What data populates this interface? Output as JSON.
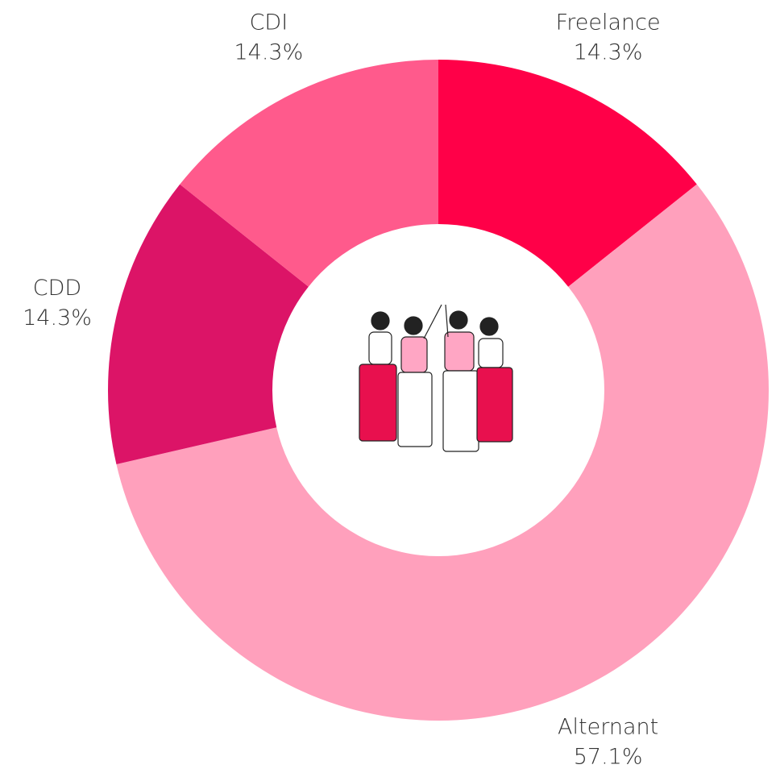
{
  "chart_data": {
    "type": "donut",
    "categories": [
      "Freelance",
      "Alternant",
      "CDD",
      "CDI"
    ],
    "values": [
      14.3,
      57.1,
      14.3,
      14.3
    ],
    "value_labels": [
      "14.3%",
      "57.1%",
      "14.3%",
      "14.3%"
    ],
    "colors": [
      "#ff0048",
      "#ffa0bc",
      "#dc1467",
      "#ff5a8c"
    ]
  }
}
